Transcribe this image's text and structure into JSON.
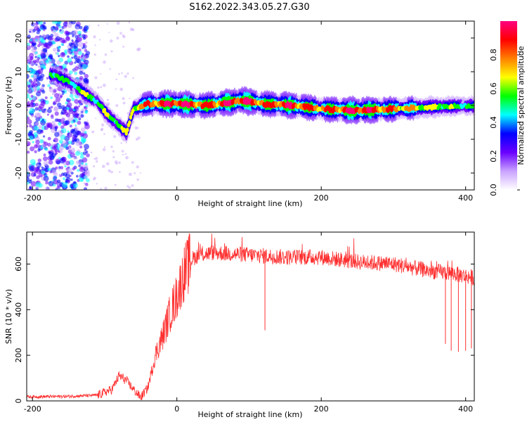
{
  "title": "S162.2022.343.05.27.G30",
  "chart_data": [
    {
      "type": "heatmap",
      "xlabel": "Height of straight line (km)",
      "ylabel": "Frequency (Hz)",
      "xlim": [
        -208,
        412
      ],
      "ylim": [
        -25,
        25
      ],
      "x_ticks": [
        -200,
        0,
        200,
        400
      ],
      "y_ticks": [
        -20,
        -10,
        0,
        10,
        20
      ],
      "colorbar": {
        "label": "Normalized spectral amplitude",
        "range": [
          0,
          1
        ],
        "ticks": [
          "0.0",
          "0.2",
          "0.4",
          "0.6",
          "0.8"
        ],
        "colors": [
          "#ffffff",
          "#c9a3ff",
          "#6a00ff",
          "#0000ff",
          "#00ffff",
          "#00ff00",
          "#ffff00",
          "#ff8000",
          "#ff0000",
          "#ff0080"
        ]
      },
      "ridge": {
        "x": [
          -170,
          -150,
          -130,
          -110,
          -95,
          -80,
          -70,
          -60,
          -40,
          0,
          40,
          90,
          120,
          160,
          200,
          250,
          300,
          350,
          412
        ],
        "freq": [
          9,
          7,
          4,
          1,
          -3,
          -6,
          -8,
          -1,
          0.5,
          0.5,
          0,
          1.5,
          0.5,
          0,
          -1,
          -1.5,
          -1,
          -0.5,
          0
        ],
        "amp": [
          0.5,
          0.4,
          0.5,
          0.45,
          0.5,
          0.5,
          0.5,
          0.6,
          0.7,
          0.85,
          0.75,
          0.85,
          0.75,
          0.8,
          0.7,
          0.85,
          0.7,
          0.55,
          0.4
        ]
      }
    },
    {
      "type": "line",
      "xlabel": "Height of straight line (km)",
      "ylabel": "SNR (10 * v/v)",
      "xlim": [
        -208,
        412
      ],
      "ylim": [
        0,
        740
      ],
      "x_ticks": [
        -200,
        0,
        200,
        400
      ],
      "y_ticks": [
        0,
        200,
        400,
        600
      ],
      "color": "#ff3030",
      "envelope": {
        "x": [
          -208,
          -150,
          -110,
          -90,
          -80,
          -70,
          -60,
          -50,
          -40,
          -30,
          -20,
          -10,
          0,
          10,
          20,
          30,
          50,
          100,
          150,
          200,
          250,
          300,
          350,
          380,
          412
        ],
        "y": [
          18,
          20,
          25,
          50,
          110,
          90,
          50,
          15,
          60,
          200,
          280,
          380,
          460,
          560,
          620,
          640,
          650,
          640,
          630,
          630,
          610,
          600,
          570,
          560,
          540
        ]
      },
      "dips": [
        {
          "x": 122,
          "y": 310
        },
        {
          "x": 372,
          "y": 250
        },
        {
          "x": 380,
          "y": 220
        },
        {
          "x": 390,
          "y": 215
        },
        {
          "x": 400,
          "y": 220
        },
        {
          "x": 408,
          "y": 230
        }
      ]
    }
  ]
}
